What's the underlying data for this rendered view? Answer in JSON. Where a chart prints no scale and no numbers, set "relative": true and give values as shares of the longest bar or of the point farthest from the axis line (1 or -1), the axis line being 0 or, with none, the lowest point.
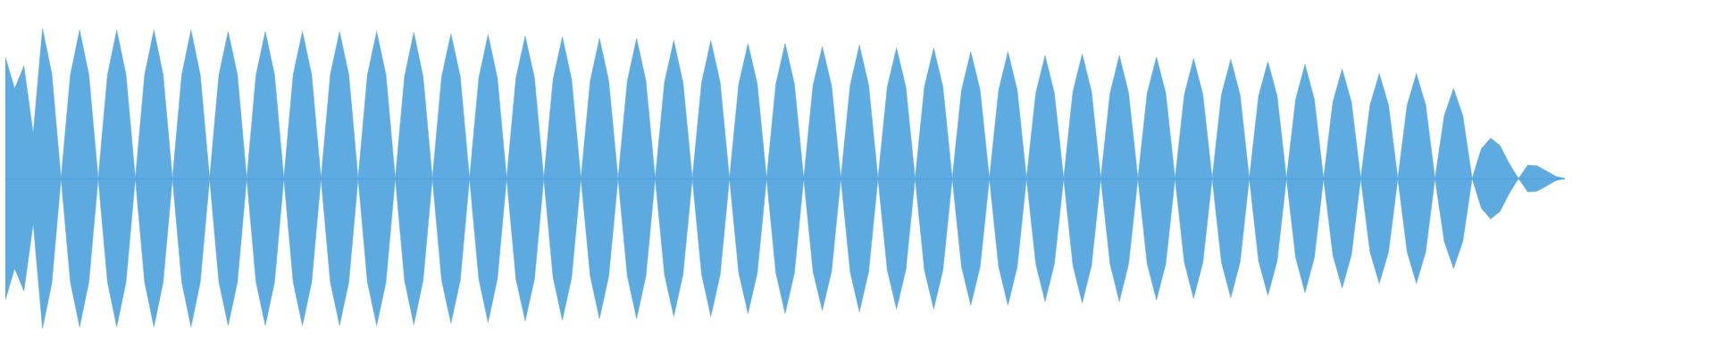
{
  "chart_data": {
    "type": "area",
    "relative": true,
    "ref_lines": [
      {
        "axis": "y",
        "value": 0,
        "color": "#4f9fd8"
      }
    ],
    "categories": [
      null,
      null,
      null,
      null,
      null,
      null,
      null,
      null,
      null,
      null,
      null,
      null,
      null,
      null,
      null,
      null,
      null,
      null,
      null,
      null,
      null,
      null,
      null,
      null,
      null,
      null,
      null,
      null,
      null,
      null,
      null,
      null,
      null,
      null,
      null,
      null,
      null,
      null,
      null,
      null,
      null,
      null,
      null,
      null,
      null,
      null,
      null,
      null,
      null,
      null,
      null,
      null,
      null,
      null,
      null,
      null,
      null,
      null,
      null,
      null,
      null,
      null,
      null,
      null,
      null,
      null,
      null,
      null,
      null,
      null,
      null,
      null,
      null,
      null,
      null,
      null,
      null,
      null,
      null,
      null,
      null,
      null,
      null,
      null,
      null,
      null,
      null,
      null,
      null,
      null,
      null,
      null,
      null,
      null,
      null,
      null,
      null,
      null,
      null,
      null,
      null,
      null,
      null,
      null,
      null,
      null,
      null,
      null,
      null,
      null,
      null,
      null,
      null,
      null,
      null,
      null,
      null,
      null,
      null,
      null,
      null,
      null,
      null,
      null,
      null,
      null,
      null,
      null,
      null,
      null,
      null,
      null,
      null,
      null,
      null,
      null,
      null,
      null,
      null,
      null,
      null,
      null,
      null,
      null,
      null,
      null,
      null,
      null,
      null,
      null,
      null,
      null,
      null,
      null,
      null,
      null,
      null,
      null,
      null,
      null,
      null,
      null,
      null,
      null,
      null,
      null,
      null,
      null,
      null
    ],
    "series": [
      {
        "color": "#5dabe0",
        "values": [
          0.81,
          0.6,
          0.75,
          0.3,
          1.0,
          0.7,
          0,
          0.69,
          0.99,
          0.69,
          0,
          0.69,
          0.99,
          0.69,
          0,
          0.69,
          0.99,
          0.69,
          0,
          0.69,
          0.99,
          0.69,
          0,
          0.69,
          0.98,
          0.69,
          0,
          0.69,
          0.98,
          0.69,
          0,
          0.69,
          0.98,
          0.69,
          0,
          0.69,
          0.98,
          0.69,
          0,
          0.69,
          0.98,
          0.69,
          0,
          0.68,
          0.975,
          0.68,
          0,
          0.68,
          0.965,
          0.68,
          0,
          0.67,
          0.96,
          0.67,
          0,
          0.67,
          0.95,
          0.67,
          0,
          0.66,
          0.945,
          0.66,
          0,
          0.65,
          0.935,
          0.65,
          0,
          0.65,
          0.935,
          0.65,
          0,
          0.64,
          0.92,
          0.64,
          0,
          0.64,
          0.92,
          0.64,
          0,
          0.63,
          0.9,
          0.63,
          0,
          0.63,
          0.9,
          0.63,
          0,
          0.62,
          0.88,
          0.62,
          0,
          0.62,
          0.89,
          0.62,
          0,
          0.61,
          0.87,
          0.61,
          0,
          0.61,
          0.87,
          0.61,
          0,
          0.59,
          0.845,
          0.59,
          0,
          0.59,
          0.845,
          0.59,
          0,
          0.57,
          0.82,
          0.57,
          0,
          0.58,
          0.83,
          0.58,
          0,
          0.57,
          0.82,
          0.57,
          0,
          0.57,
          0.81,
          0.57,
          0,
          0.56,
          0.8,
          0.56,
          0,
          0.56,
          0.795,
          0.56,
          0,
          0.55,
          0.78,
          0.55,
          0,
          0.53,
          0.76,
          0.53,
          0,
          0.51,
          0.73,
          0.51,
          0,
          0.49,
          0.7,
          0.49,
          0,
          0.49,
          0.7,
          0.49,
          0,
          0.42,
          0.6,
          0.42,
          0,
          0.2,
          0.27,
          0.22,
          0.1,
          0,
          0.09,
          0.085,
          0.05,
          0.015,
          0
        ]
      },
      {
        "color": "#5caae0",
        "values": [
          -0.81,
          -0.6,
          -0.75,
          -0.3,
          -1.0,
          -0.7,
          0,
          -0.69,
          -0.99,
          -0.69,
          0,
          -0.69,
          -0.99,
          -0.69,
          0,
          -0.69,
          -0.99,
          -0.69,
          0,
          -0.69,
          -0.99,
          -0.69,
          0,
          -0.69,
          -0.98,
          -0.69,
          0,
          -0.69,
          -0.98,
          -0.69,
          0,
          -0.69,
          -0.98,
          -0.69,
          0,
          -0.69,
          -0.98,
          -0.69,
          0,
          -0.69,
          -0.98,
          -0.69,
          0,
          -0.68,
          -0.975,
          -0.68,
          0,
          -0.68,
          -0.965,
          -0.68,
          0,
          -0.67,
          -0.96,
          -0.67,
          0,
          -0.67,
          -0.95,
          -0.67,
          0,
          -0.66,
          -0.945,
          -0.66,
          0,
          -0.65,
          -0.935,
          -0.65,
          0,
          -0.65,
          -0.935,
          -0.65,
          0,
          -0.64,
          -0.92,
          -0.64,
          0,
          -0.64,
          -0.92,
          -0.64,
          0,
          -0.63,
          -0.9,
          -0.63,
          0,
          -0.63,
          -0.9,
          -0.63,
          0,
          -0.62,
          -0.88,
          -0.62,
          0,
          -0.62,
          -0.89,
          -0.62,
          0,
          -0.61,
          -0.87,
          -0.61,
          0,
          -0.61,
          -0.87,
          -0.61,
          0,
          -0.59,
          -0.845,
          -0.59,
          0,
          -0.59,
          -0.845,
          -0.59,
          0,
          -0.57,
          -0.82,
          -0.57,
          0,
          -0.58,
          -0.83,
          -0.58,
          0,
          -0.57,
          -0.82,
          -0.57,
          0,
          -0.57,
          -0.81,
          -0.57,
          0,
          -0.56,
          -0.8,
          -0.56,
          0,
          -0.56,
          -0.795,
          -0.56,
          0,
          -0.55,
          -0.78,
          -0.55,
          0,
          -0.53,
          -0.76,
          -0.53,
          0,
          -0.51,
          -0.73,
          -0.51,
          0,
          -0.49,
          -0.7,
          -0.49,
          0,
          -0.49,
          -0.7,
          -0.49,
          0,
          -0.42,
          -0.6,
          -0.42,
          0,
          -0.2,
          -0.27,
          -0.22,
          -0.1,
          0,
          -0.09,
          -0.085,
          -0.05,
          -0.015,
          0
        ]
      }
    ]
  }
}
